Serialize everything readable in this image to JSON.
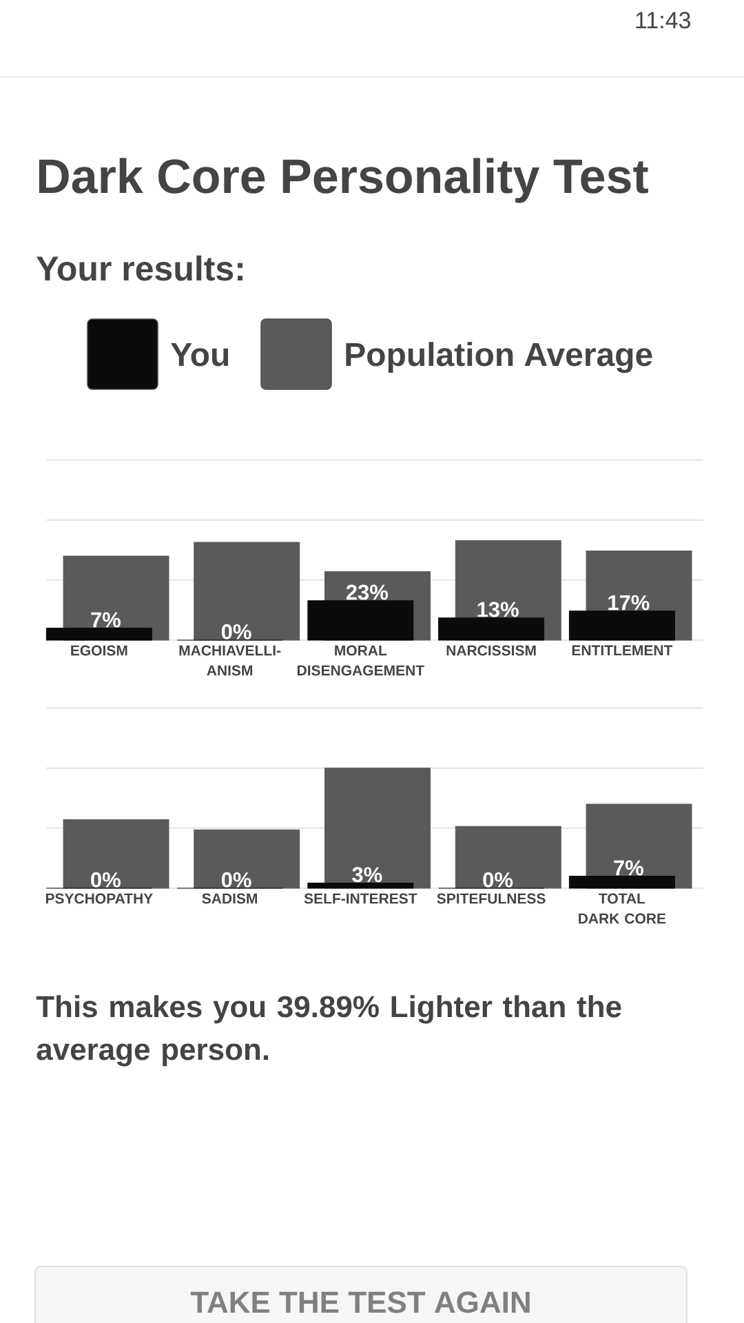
{
  "chart_data": [
    {
      "type": "bar",
      "title": "Dark Core Personality Test",
      "subtitle": "Your results:",
      "categories": [
        "EGOISM",
        "MACHIAVELLI-ANISM",
        "MORAL DISENGAGEMENT",
        "NARCISSISM",
        "ENTITLEMENT"
      ],
      "series": [
        {
          "name": "You",
          "color": "#0b0b0b",
          "values": [
            7,
            0,
            23,
            13,
            17
          ],
          "value_labels": [
            "7%",
            "0%",
            "23%",
            "13%",
            "17%"
          ]
        },
        {
          "name": "Population Average",
          "color": "#5a5a5a",
          "values": [
            49,
            57,
            40,
            58,
            52
          ]
        }
      ],
      "ylim": [
        0,
        105
      ],
      "yticks": [
        {
          "value": 0,
          "label": null
        },
        {
          "value": 35,
          "label": null
        },
        {
          "value": 70,
          "label": null
        },
        {
          "value": 105,
          "label": null
        }
      ],
      "grid": "y",
      "tick_labels": "x",
      "legend": "top",
      "annotations": [
        "11:43"
      ]
    },
    {
      "type": "bar",
      "categories": [
        "PSYCHOPATHY",
        "SADISM",
        "SELF-INTEREST",
        "SPITEFULNESS",
        "TOTAL DARK CORE"
      ],
      "series": [
        {
          "color": "#0b0b0b",
          "values": [
            0,
            0,
            3,
            0,
            7
          ],
          "value_labels": [
            "0%",
            "0%",
            "3%",
            "0%",
            "7%"
          ]
        },
        {
          "color": "#5a5a5a",
          "values": [
            40,
            34,
            70,
            36,
            49
          ]
        }
      ],
      "ylim": [
        0,
        105
      ],
      "yticks": [
        {
          "value": 0,
          "label": null
        },
        {
          "value": 35,
          "label": null
        },
        {
          "value": 70,
          "label": null
        },
        {
          "value": 105,
          "label": null
        }
      ],
      "grid": "y",
      "tick_labels": "x",
      "annotations": [
        "This makes you 39.89% Lighter than the average person.",
        "TAKE THE TEST AGAIN"
      ]
    }
  ]
}
